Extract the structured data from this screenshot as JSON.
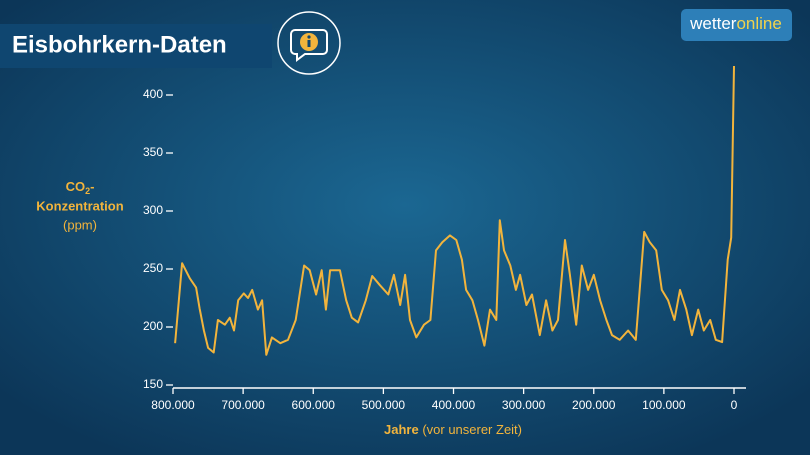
{
  "header": {
    "title": "Eisbohrkern-Daten",
    "logo": [
      "wetter",
      "online"
    ]
  },
  "chart_data": {
    "type": "line",
    "ylabel": [
      "CO",
      "2",
      "-",
      "Konzentration",
      "(ppm)"
    ],
    "xlabel": [
      "Jahre",
      "(vor unserer Zeit)"
    ],
    "x": [
      797000,
      787000,
      776000,
      767000,
      762000,
      756000,
      750000,
      742000,
      736000,
      726000,
      719000,
      713000,
      707000,
      699000,
      693000,
      687000,
      679000,
      673000,
      667000,
      659000,
      647000,
      636000,
      625000,
      613000,
      605000,
      596000,
      588000,
      582000,
      576000,
      562000,
      553000,
      545000,
      536000,
      525000,
      516000,
      505000,
      493000,
      485000,
      476000,
      469000,
      462000,
      453000,
      442000,
      433000,
      425000,
      416000,
      405000,
      396000,
      388000,
      382000,
      373000,
      365000,
      356000,
      348000,
      339000,
      334000,
      328000,
      319000,
      311000,
      305000,
      296000,
      288000,
      277000,
      268000,
      259000,
      251000,
      241000,
      234000,
      225000,
      217000,
      208000,
      200000,
      191000,
      182000,
      174000,
      163000,
      151000,
      140000,
      128000,
      120000,
      111000,
      103000,
      94000,
      85000,
      77000,
      68000,
      60000,
      51000,
      43000,
      34000,
      26000,
      17000,
      9000,
      4000,
      0
    ],
    "series": [
      {
        "color": "#f2b43c",
        "values": [
          186,
          255,
          242,
          234,
          216,
          197,
          182,
          178,
          206,
          202,
          208,
          197,
          223,
          229,
          225,
          232,
          215,
          223,
          176,
          191,
          186,
          189,
          206,
          253,
          249,
          228,
          249,
          215,
          249,
          249,
          223,
          208,
          204,
          223,
          244,
          236,
          228,
          245,
          219,
          245,
          206,
          191,
          202,
          206,
          266,
          273,
          279,
          275,
          258,
          232,
          223,
          206,
          184,
          215,
          206,
          292,
          266,
          253,
          232,
          245,
          219,
          228,
          193,
          223,
          197,
          206,
          275,
          245,
          202,
          253,
          232,
          245,
          223,
          206,
          193,
          189,
          197,
          189,
          282,
          273,
          266,
          232,
          223,
          206,
          232,
          215,
          193,
          215,
          197,
          206,
          189,
          187,
          258,
          277,
          425
        ]
      }
    ],
    "xlim": [
      800000,
      0
    ],
    "xticks": [
      {
        "value": 800000,
        "label": "800.000"
      },
      {
        "value": 700000,
        "label": "700.000"
      },
      {
        "value": 600000,
        "label": "600.000"
      },
      {
        "value": 500000,
        "label": "500.000"
      },
      {
        "value": 400000,
        "label": "400.000"
      },
      {
        "value": 300000,
        "label": "300.000"
      },
      {
        "value": 200000,
        "label": "200.000"
      },
      {
        "value": 100000,
        "label": "100.000"
      },
      0
    ],
    "ylim": [
      150,
      450
    ],
    "yticks": [
      150,
      200,
      250,
      300,
      350,
      400
    ]
  }
}
